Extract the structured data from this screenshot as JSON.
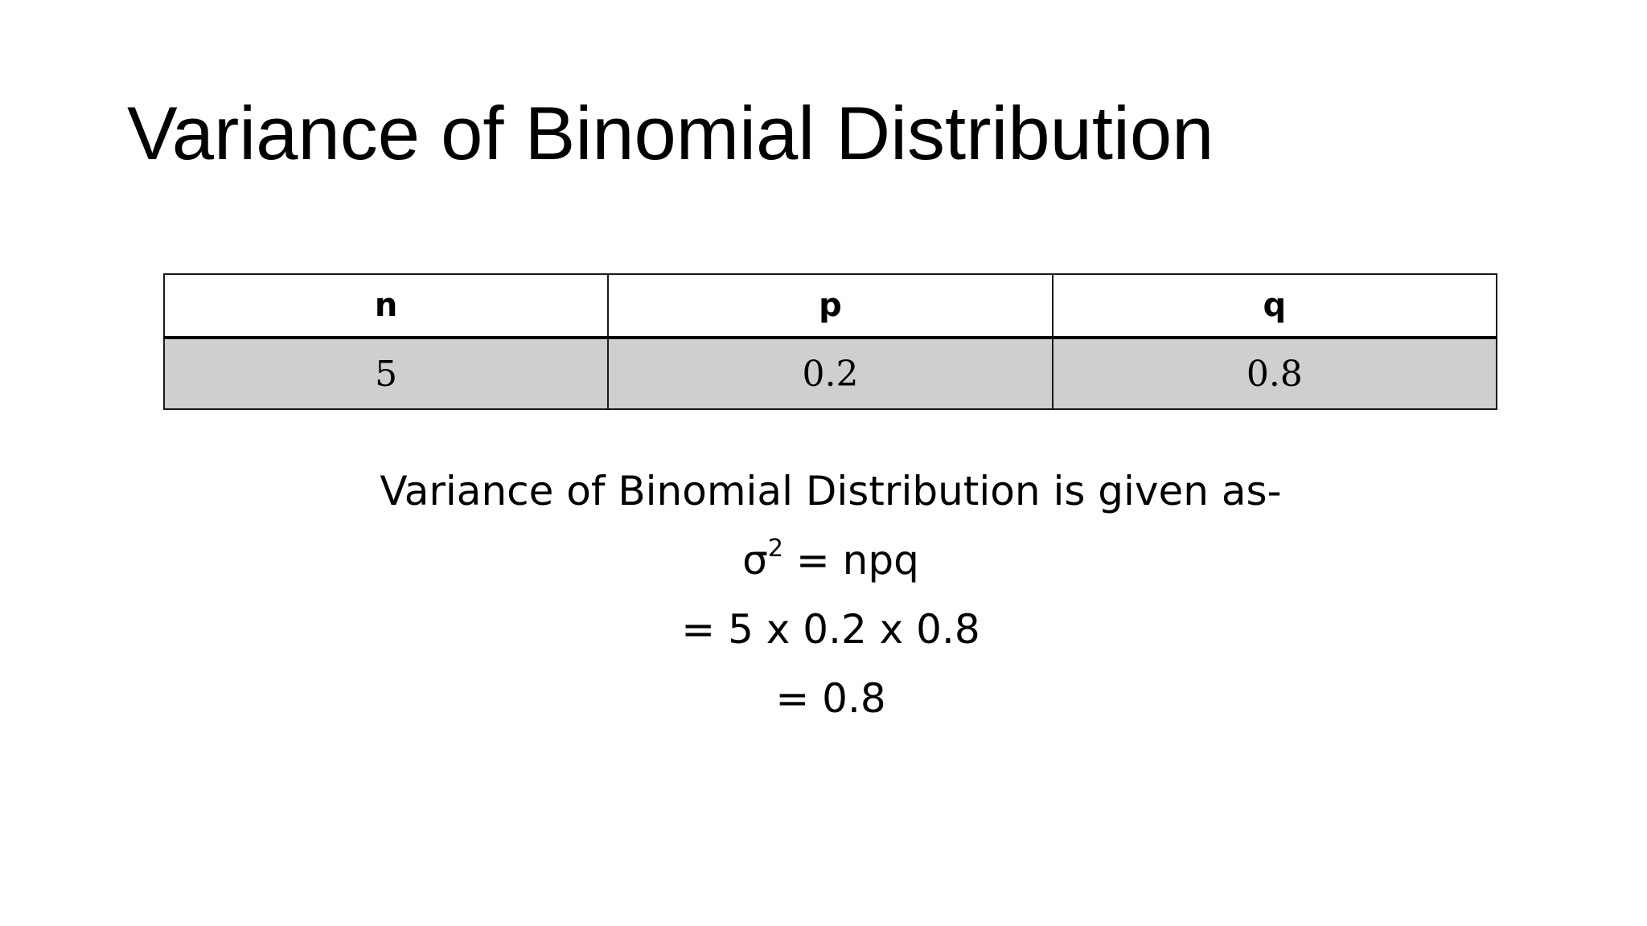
{
  "slide": {
    "title": "Variance of Binomial Distribution"
  },
  "table": {
    "headers": [
      "n",
      "p",
      "q"
    ],
    "row": [
      "5",
      "0.2",
      "0.8"
    ]
  },
  "explanation": {
    "intro": "Variance of Binomial Distribution is given as-",
    "formula_symbol": "σ",
    "formula_exponent": "2",
    "formula_rhs": " = npq",
    "step1": "= 5 x 0.2 x 0.8",
    "result": "= 0.8"
  }
}
